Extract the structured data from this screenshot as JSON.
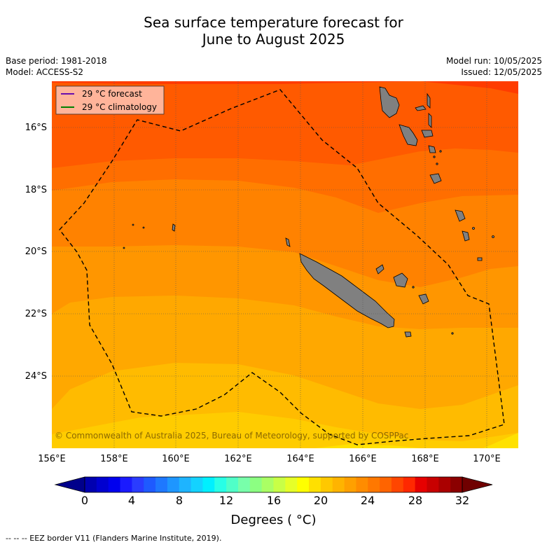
{
  "title_line1": "Sea surface temperature forecast for",
  "title_line2": "June to August 2025",
  "base_period": "Base period: 1981-2018",
  "model": "Model: ACCESS-S2",
  "model_run": "Model run: 10/05/2025",
  "issued": "Issued: 12/05/2025",
  "legend": {
    "forecast": "29 °C  forecast",
    "climatology": "29 °C  climatology",
    "forecast_color": "#6a0dad",
    "climatology_color": "#008000"
  },
  "copyright": "© Commonwealth of Australia 2025, Bureau of Meteorology, supported by COSPPac",
  "lat_labels": [
    "16°S",
    "18°S",
    "20°S",
    "22°S",
    "24°S"
  ],
  "lon_labels": [
    "156°E",
    "158°E",
    "160°E",
    "162°E",
    "164°E",
    "166°E",
    "168°E",
    "170°E"
  ],
  "colorbar": {
    "ticks": [
      "0",
      "4",
      "8",
      "12",
      "16",
      "20",
      "24",
      "28",
      "32"
    ],
    "label": "Degrees ( °C)",
    "colors": [
      "#00008b",
      "#0000b0",
      "#0000d0",
      "#0000ee",
      "#1a1aff",
      "#2a3cff",
      "#1e5aff",
      "#1e78ff",
      "#1e96ff",
      "#1eb4ff",
      "#14d2ff",
      "#00f0ff",
      "#28ffe6",
      "#50ffc8",
      "#78ffaa",
      "#8cff82",
      "#aaff64",
      "#c8ff46",
      "#e6ff28",
      "#ffff00",
      "#ffe000",
      "#ffc800",
      "#ffb400",
      "#ffa000",
      "#ff8c00",
      "#ff7800",
      "#ff6400",
      "#ff4600",
      "#ff2800",
      "#e60000",
      "#c80000",
      "#aa0000",
      "#8b0000",
      "#700000"
    ]
  },
  "eez_note": "--  --  -- EEZ border V11 (Flanders Marine Institute, 2019).",
  "sst_bands": [
    {
      "temp": "28.5-29",
      "color": "#ff3c00"
    },
    {
      "temp": "28-28.5",
      "color": "#ff5a00"
    },
    {
      "temp": "27.5-28",
      "color": "#ff6e00"
    },
    {
      "temp": "27-27.5",
      "color": "#ff8200"
    },
    {
      "temp": "26.5-27",
      "color": "#ff9600"
    },
    {
      "temp": "26-26.5",
      "color": "#ffa800"
    },
    {
      "temp": "25.5-26",
      "color": "#ffbb00"
    },
    {
      "temp": "25-25.5",
      "color": "#ffcc00"
    },
    {
      "temp": "24.5-25",
      "color": "#ffe100"
    }
  ],
  "land_color": "#808080",
  "map_extent": {
    "lon": [
      156,
      171
    ],
    "lat": [
      -14.7,
      -26.5
    ]
  }
}
